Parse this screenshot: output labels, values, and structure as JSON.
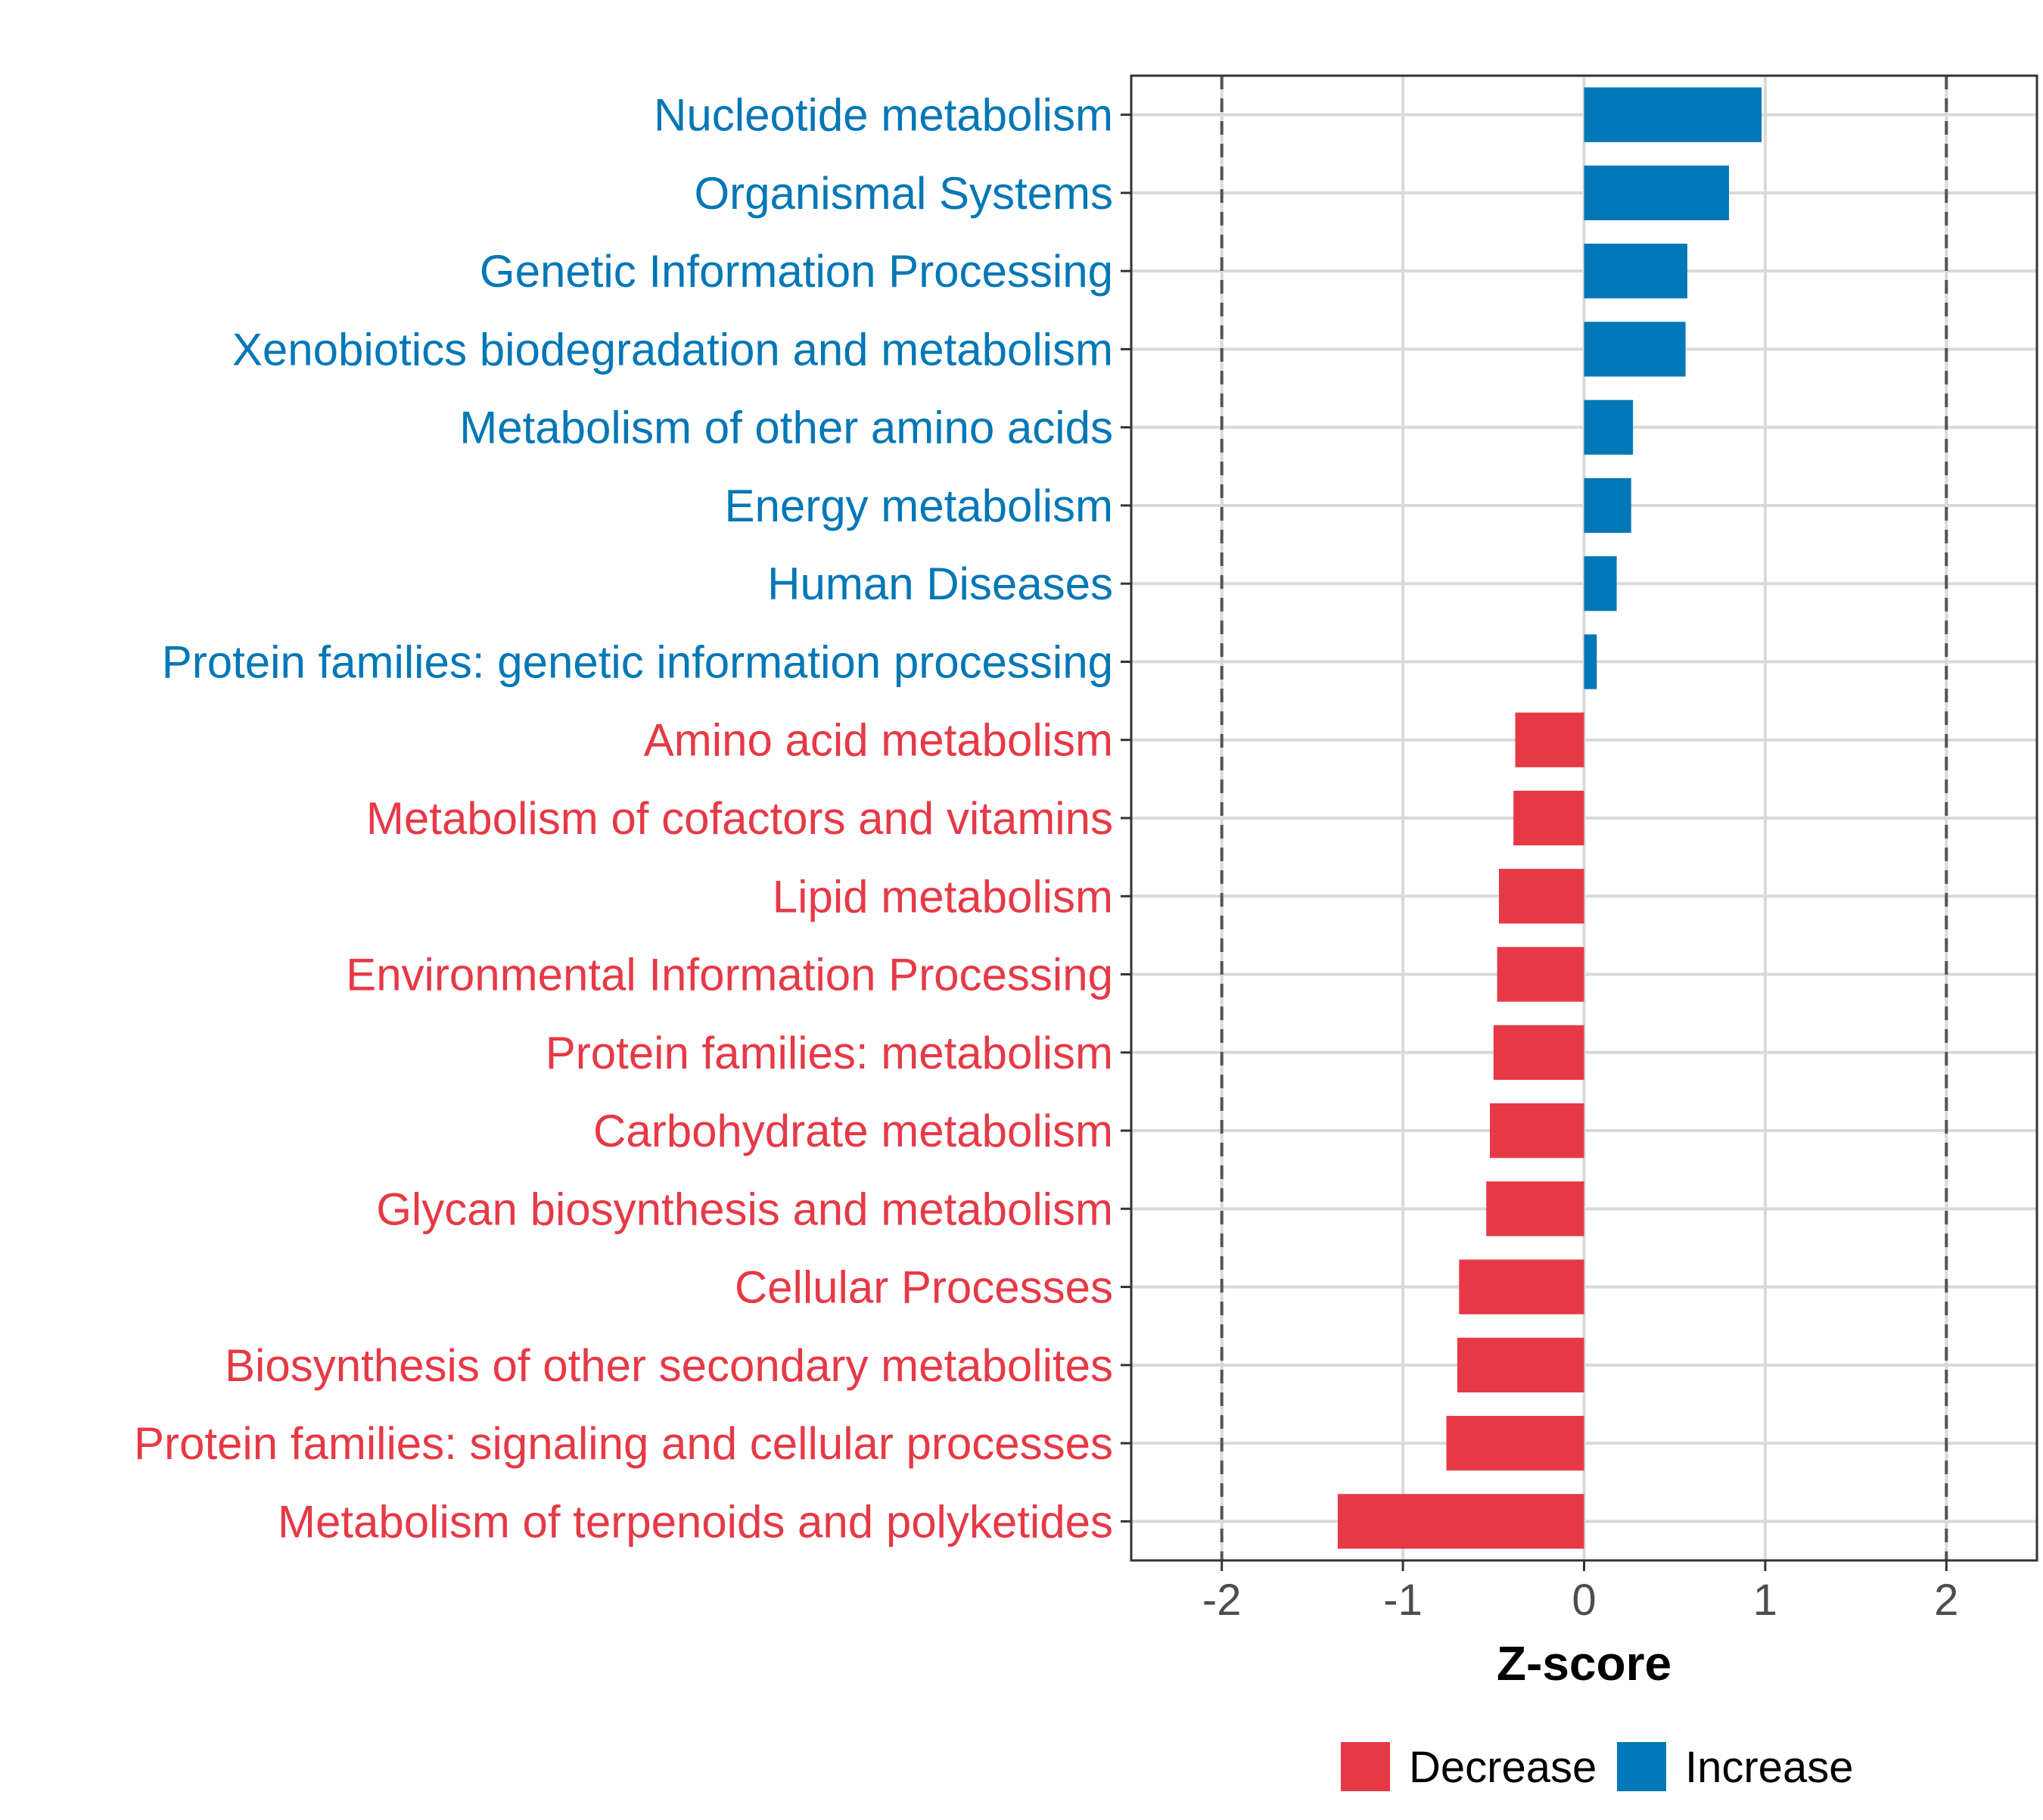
{
  "chart_data": {
    "type": "bar",
    "orientation": "horizontal",
    "title": "",
    "xlabel": "Z-score",
    "ylabel": "",
    "xlim": [
      -2.5,
      2.5
    ],
    "xticks": [
      -2,
      -1,
      0,
      1,
      2
    ],
    "tick_labels": [
      "-2",
      "-1",
      "0",
      "1",
      "2"
    ],
    "reference_lines": [
      -2,
      2
    ],
    "grid": true,
    "legend_position": "bottom",
    "colors": {
      "Decrease": "#e63946",
      "Increase": "#0077b6"
    },
    "legend": [
      {
        "label": "Decrease",
        "color": "#e63946"
      },
      {
        "label": "Increase",
        "color": "#0077b6"
      }
    ],
    "categories": [
      "Nucleotide metabolism",
      "Organismal Systems",
      "Genetic Information Processing",
      "Xenobiotics biodegradation and metabolism",
      "Metabolism of other amino acids",
      "Energy metabolism",
      "Human Diseases",
      "Protein families: genetic information processing",
      "Amino acid metabolism",
      "Metabolism of cofactors and vitamins",
      "Lipid metabolism",
      "Environmental Information Processing",
      "Protein families: metabolism",
      "Carbohydrate metabolism",
      "Glycan biosynthesis and metabolism",
      "Cellular Processes",
      "Biosynthesis of other secondary metabolites",
      "Protein families: signaling and cellular processes",
      "Metabolism of terpenoids and polyketides"
    ],
    "values": [
      0.98,
      0.8,
      0.57,
      0.56,
      0.27,
      0.26,
      0.18,
      0.07,
      -0.38,
      -0.39,
      -0.47,
      -0.48,
      -0.5,
      -0.52,
      -0.54,
      -0.69,
      -0.7,
      -0.76,
      -1.36
    ],
    "groups": [
      "Increase",
      "Increase",
      "Increase",
      "Increase",
      "Increase",
      "Increase",
      "Increase",
      "Increase",
      "Decrease",
      "Decrease",
      "Decrease",
      "Decrease",
      "Decrease",
      "Decrease",
      "Decrease",
      "Decrease",
      "Decrease",
      "Decrease",
      "Decrease"
    ]
  }
}
